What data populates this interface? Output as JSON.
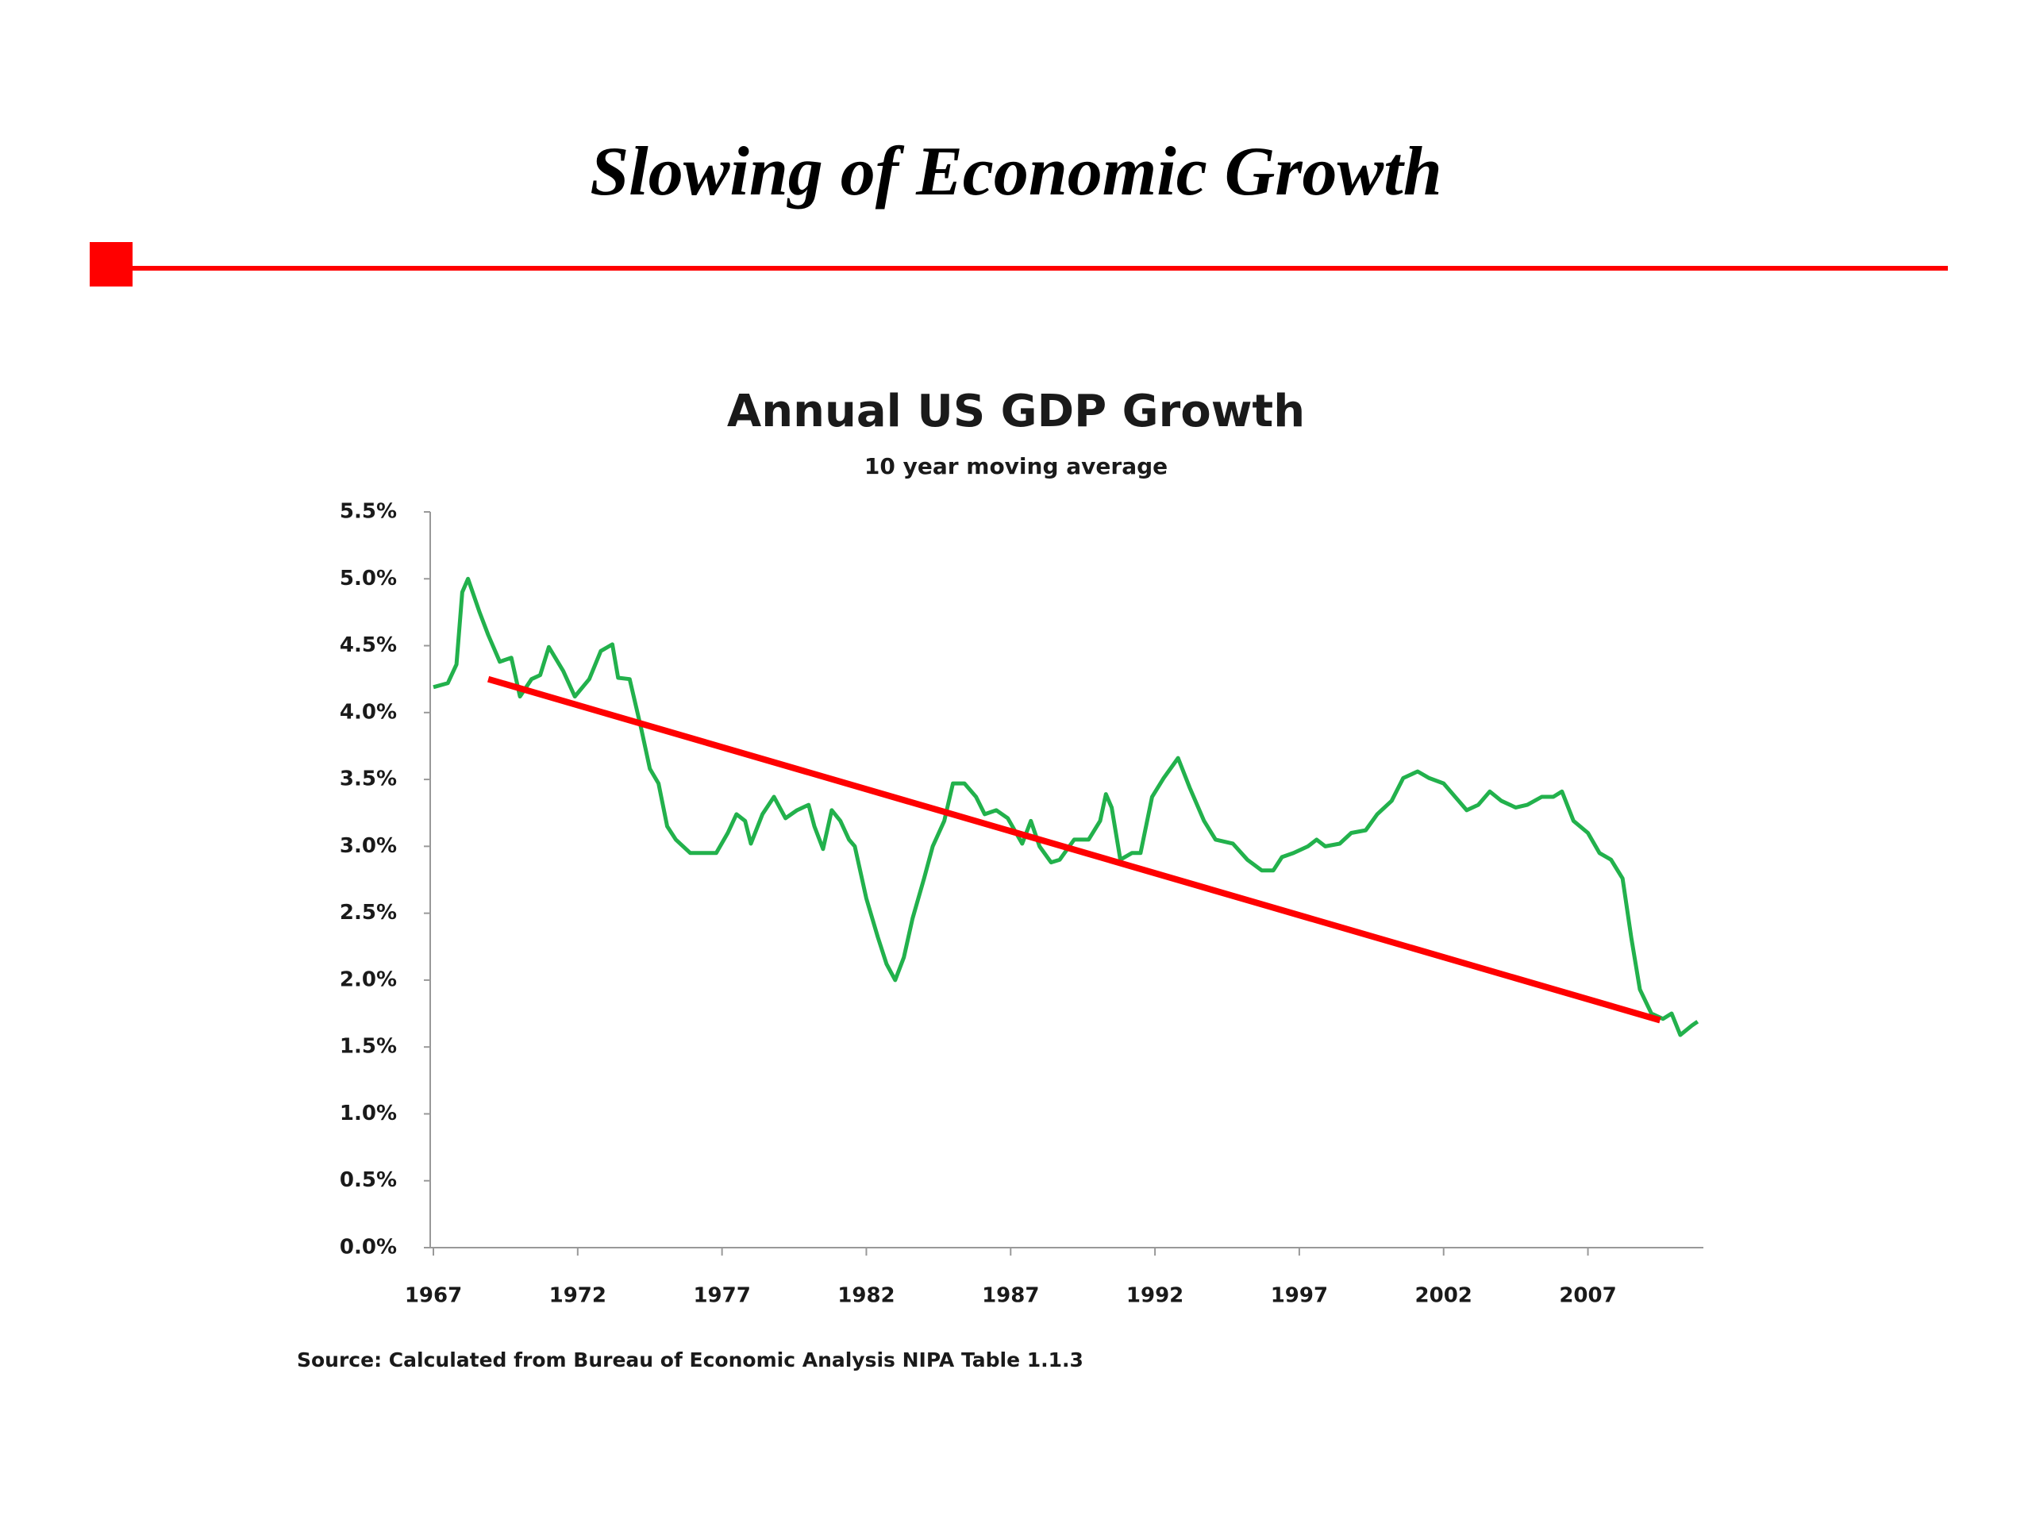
{
  "slide_title": "Slowing of Economic Growth",
  "chart_data": {
    "type": "line",
    "title": "Annual US GDP Growth",
    "subtitle": "10 year moving average",
    "source": "Source: Calculated  from Bureau of Economic Analysis NIPA Table  1.1.3",
    "color": "#22b14c",
    "x": [
      1967.0,
      1967.5,
      1967.8,
      1968.0,
      1968.2,
      1968.6,
      1968.9,
      1969.3,
      1969.7,
      1970.0,
      1970.4,
      1970.7,
      1971.0,
      1971.5,
      1971.9,
      1972.4,
      1972.8,
      1973.2,
      1973.4,
      1973.8,
      1974.2,
      1974.5,
      1974.8,
      1975.1,
      1975.4,
      1975.9,
      1976.3,
      1976.8,
      1977.2,
      1977.5,
      1977.8,
      1978.0,
      1978.4,
      1978.8,
      1979.2,
      1979.6,
      1980.0,
      1980.2,
      1980.5,
      1980.8,
      1981.1,
      1981.4,
      1981.6,
      1982.0,
      1982.4,
      1982.7,
      1983.0,
      1983.3,
      1983.6,
      1984.0,
      1984.3,
      1984.7,
      1985.0,
      1985.4,
      1985.8,
      1986.1,
      1986.5,
      1986.9,
      1987.4,
      1987.7,
      1988.0,
      1988.4,
      1988.7,
      1989.2,
      1989.7,
      1990.1,
      1990.3,
      1990.5,
      1990.8,
      1991.2,
      1991.5,
      1991.9,
      1992.3,
      1992.8,
      1993.2,
      1993.7,
      1994.1,
      1994.7,
      1995.2,
      1995.7,
      1996.1,
      1996.4,
      1996.8,
      1997.3,
      1997.6,
      1997.9,
      1998.4,
      1998.8,
      1999.3,
      1999.7,
      2000.2,
      2000.6,
      2001.1,
      2001.5,
      2002.0,
      2002.4,
      2002.8,
      2003.2,
      2003.6,
      2004.0,
      2004.5,
      2004.9,
      2005.4,
      2005.8,
      2006.1,
      2006.5,
      2007.0,
      2007.4,
      2007.8,
      2008.2,
      2008.5,
      2008.8,
      2009.2,
      2009.6,
      2009.9,
      2010.2,
      2010.6,
      2010.8
    ],
    "values": [
      4.19,
      4.22,
      4.36,
      4.9,
      5.0,
      4.75,
      4.58,
      4.38,
      4.41,
      4.12,
      4.25,
      4.28,
      4.49,
      4.31,
      4.12,
      4.25,
      4.46,
      4.51,
      4.26,
      4.25,
      3.88,
      3.58,
      3.47,
      3.15,
      3.05,
      2.95,
      2.95,
      2.95,
      3.1,
      3.24,
      3.19,
      3.02,
      3.24,
      3.37,
      3.21,
      3.27,
      3.31,
      3.15,
      2.98,
      3.27,
      3.19,
      3.05,
      3.0,
      2.61,
      2.32,
      2.12,
      2.0,
      2.17,
      2.46,
      2.76,
      3.0,
      3.19,
      3.47,
      3.47,
      3.37,
      3.24,
      3.27,
      3.21,
      3.02,
      3.19,
      3.0,
      2.88,
      2.9,
      3.05,
      3.05,
      3.19,
      3.39,
      3.29,
      2.9,
      2.95,
      2.95,
      3.37,
      3.51,
      3.66,
      3.44,
      3.19,
      3.05,
      3.02,
      2.9,
      2.82,
      2.82,
      2.92,
      2.95,
      3.0,
      3.05,
      3.0,
      3.02,
      3.1,
      3.12,
      3.24,
      3.34,
      3.51,
      3.56,
      3.51,
      3.47,
      3.37,
      3.27,
      3.31,
      3.41,
      3.34,
      3.29,
      3.31,
      3.37,
      3.37,
      3.41,
      3.19,
      3.1,
      2.95,
      2.9,
      2.76,
      2.32,
      1.93,
      1.75,
      1.71,
      1.75,
      1.59,
      1.66,
      1.69
    ],
    "trendline": {
      "x": [
        1968.9,
        2009.5
      ],
      "values": [
        4.25,
        1.7
      ],
      "color": "#ff0000"
    },
    "xlim": [
      1967,
      2011
    ],
    "xticks": [
      1967,
      1972,
      1977,
      1982,
      1987,
      1992,
      1997,
      2002,
      2007
    ],
    "ylim": [
      0,
      5.5
    ],
    "yticks": [
      {
        "value": 0,
        "label": "0.0%"
      },
      {
        "value": 0.5,
        "label": "0.5%"
      },
      {
        "value": 1,
        "label": "1.0%"
      },
      {
        "value": 1.5,
        "label": "1.5%"
      },
      {
        "value": 2,
        "label": "2.0%"
      },
      {
        "value": 2.5,
        "label": "2.5%"
      },
      {
        "value": 3,
        "label": "3.0%"
      },
      {
        "value": 3.5,
        "label": "3.5%"
      },
      {
        "value": 4,
        "label": "4.0%"
      },
      {
        "value": 4.5,
        "label": "4.5%"
      },
      {
        "value": 5,
        "label": "5.0%"
      },
      {
        "value": 5.5,
        "label": "5.5%"
      }
    ]
  }
}
